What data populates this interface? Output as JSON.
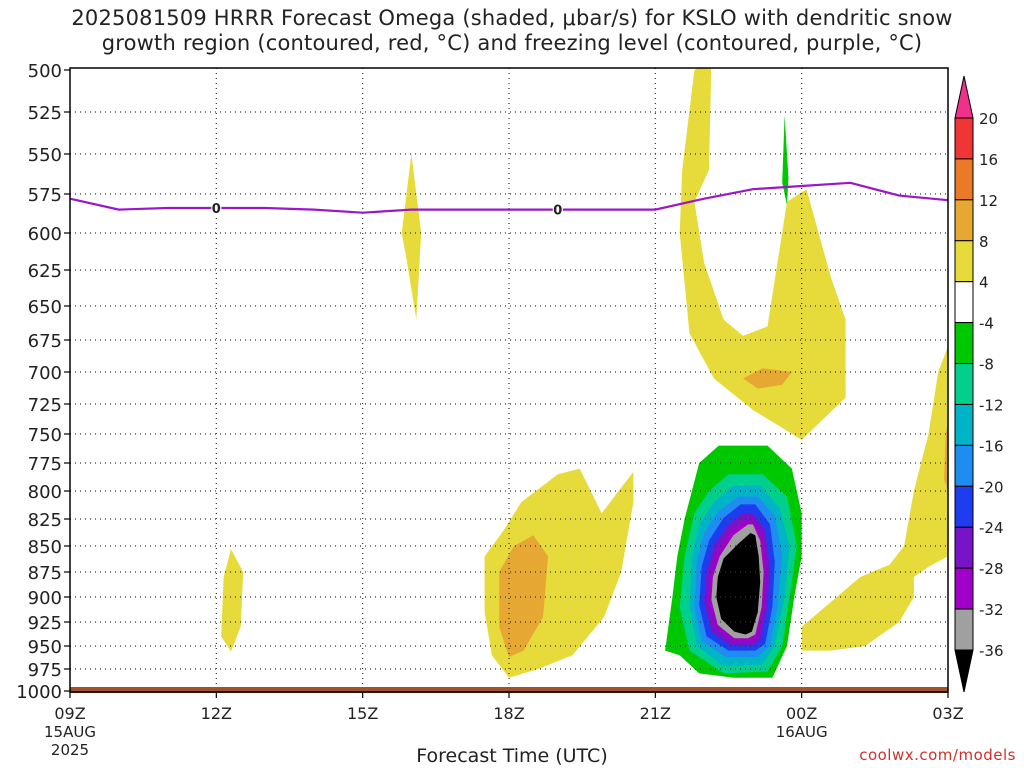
{
  "title": {
    "line1": "2025081509 HRRR Forecast Omega (shaded, μbar/s) for KSLO with dendritic snow",
    "line2": "growth region (contoured, red, °C) and freezing level (contoured, purple, °C)"
  },
  "credit": "coolwx.com/models",
  "chart_data": {
    "type": "contour",
    "xlabel": "Forecast Time (UTC)",
    "x_ticks": [
      {
        "label": "09Z",
        "date": "15AUG",
        "year": "2025",
        "hour": 0
      },
      {
        "label": "12Z",
        "hour": 3
      },
      {
        "label": "15Z",
        "hour": 6
      },
      {
        "label": "18Z",
        "hour": 9
      },
      {
        "label": "21Z",
        "hour": 12
      },
      {
        "label": "00Z",
        "date": "16AUG",
        "hour": 15
      },
      {
        "label": "03Z",
        "hour": 18
      }
    ],
    "y_ticks": [
      "500",
      "525",
      "550",
      "575",
      "600",
      "625",
      "650",
      "675",
      "700",
      "725",
      "750",
      "775",
      "800",
      "825",
      "850",
      "875",
      "900",
      "925",
      "950",
      "975",
      "1000"
    ],
    "ylim": [
      1000,
      500
    ],
    "grid": true,
    "colorbar": {
      "labels": [
        "20",
        "16",
        "12",
        "8",
        "4",
        "-4",
        "-8",
        "-12",
        "-16",
        "-20",
        "-24",
        "-28",
        "-32",
        "-36"
      ],
      "colors": [
        "#f0308a",
        "#f03535",
        "#ea7a28",
        "#e6a832",
        "#e6db3a",
        "#ffffff",
        "#00c800",
        "#00d08c",
        "#00b4c8",
        "#1e8cf0",
        "#1e3cf0",
        "#7814c8",
        "#a000c8",
        "#a0a0a0",
        "#000000"
      ]
    },
    "freezing_level": {
      "label": "0",
      "color": "#9b18c8",
      "points": [
        [
          0,
          578
        ],
        [
          1,
          585
        ],
        [
          2,
          584
        ],
        [
          3,
          584
        ],
        [
          4,
          584
        ],
        [
          5,
          585
        ],
        [
          6,
          587
        ],
        [
          7,
          585
        ],
        [
          8,
          585
        ],
        [
          9,
          585
        ],
        [
          10,
          585
        ],
        [
          11,
          585
        ],
        [
          12,
          585
        ],
        [
          13,
          578
        ],
        [
          14,
          572
        ],
        [
          15,
          570
        ],
        [
          16,
          568
        ],
        [
          17,
          576
        ],
        [
          18,
          579
        ]
      ]
    },
    "omega_regions": [
      {
        "value": 6,
        "color": "#e6db3a",
        "points": [
          [
            12.8,
            500
          ],
          [
            13.15,
            495
          ],
          [
            13.1,
            560
          ],
          [
            12.8,
            580
          ],
          [
            13.0,
            620
          ],
          [
            13.4,
            660
          ],
          [
            13.8,
            672
          ],
          [
            14.3,
            665
          ],
          [
            14.7,
            580
          ],
          [
            15.1,
            572
          ],
          [
            15.6,
            630
          ],
          [
            15.9,
            660
          ],
          [
            15.9,
            720
          ],
          [
            15.0,
            755
          ],
          [
            14.0,
            730
          ],
          [
            13.2,
            705
          ],
          [
            12.7,
            670
          ],
          [
            12.5,
            600
          ],
          [
            12.55,
            560
          ]
        ]
      },
      {
        "value": 10,
        "color": "#e6a832",
        "points": [
          [
            13.8,
            705
          ],
          [
            14.2,
            697
          ],
          [
            14.8,
            700
          ],
          [
            14.6,
            710
          ],
          [
            14.1,
            713
          ]
        ]
      },
      {
        "value": -6,
        "color": "#00c800",
        "points": [
          [
            14.65,
            527
          ],
          [
            14.73,
            565
          ],
          [
            14.7,
            582
          ],
          [
            14.6,
            568
          ]
        ]
      },
      {
        "value": 6,
        "color": "#e6db3a",
        "points": [
          [
            7.0,
            550
          ],
          [
            7.2,
            600
          ],
          [
            7.1,
            660
          ],
          [
            6.9,
            618
          ],
          [
            6.8,
            600
          ]
        ]
      },
      {
        "value": 6,
        "color": "#e6db3a",
        "points": [
          [
            3.3,
            853
          ],
          [
            3.55,
            875
          ],
          [
            3.5,
            930
          ],
          [
            3.3,
            956
          ],
          [
            3.1,
            940
          ],
          [
            3.15,
            880
          ]
        ]
      },
      {
        "value": 6,
        "color": "#e6db3a",
        "points": [
          [
            10.0,
            785
          ],
          [
            10.45,
            780
          ],
          [
            10.9,
            820
          ],
          [
            11.3,
            797
          ],
          [
            11.55,
            783
          ],
          [
            11.55,
            810
          ],
          [
            11.3,
            875
          ],
          [
            10.95,
            920
          ],
          [
            10.3,
            960
          ],
          [
            9.6,
            975
          ],
          [
            9.0,
            985
          ],
          [
            8.65,
            960
          ],
          [
            8.5,
            915
          ],
          [
            8.5,
            860
          ],
          [
            8.9,
            835
          ],
          [
            9.25,
            810
          ]
        ]
      },
      {
        "value": 10,
        "color": "#e6a832",
        "points": [
          [
            9.1,
            850
          ],
          [
            9.5,
            840
          ],
          [
            9.8,
            860
          ],
          [
            9.7,
            920
          ],
          [
            9.3,
            955
          ],
          [
            9.0,
            962
          ],
          [
            8.8,
            930
          ],
          [
            8.8,
            875
          ]
        ]
      },
      {
        "value": 6,
        "color": "#e6db3a",
        "points": [
          [
            15.0,
            930
          ],
          [
            15.6,
            905
          ],
          [
            16.2,
            880
          ],
          [
            16.8,
            868
          ],
          [
            17.1,
            850
          ],
          [
            17.3,
            800
          ],
          [
            17.6,
            750
          ],
          [
            17.8,
            700
          ],
          [
            18,
            680
          ],
          [
            18,
            860
          ],
          [
            17.6,
            870
          ],
          [
            17.3,
            880
          ],
          [
            17.3,
            900
          ],
          [
            17.0,
            925
          ],
          [
            16.3,
            950
          ],
          [
            15.6,
            955
          ],
          [
            15.0,
            955
          ]
        ]
      },
      {
        "value": 10,
        "color": "#e6a832",
        "points": [
          [
            17.95,
            750
          ],
          [
            18,
            740
          ],
          [
            18,
            800
          ],
          [
            17.92,
            790
          ]
        ]
      },
      {
        "value": -6,
        "color": "#00c800",
        "points": [
          [
            12.9,
            775
          ],
          [
            13.3,
            760
          ],
          [
            14.3,
            760
          ],
          [
            14.8,
            780
          ],
          [
            15.0,
            820
          ],
          [
            15.0,
            860
          ],
          [
            14.85,
            900
          ],
          [
            14.7,
            950
          ],
          [
            14.4,
            985
          ],
          [
            13.6,
            985
          ],
          [
            12.9,
            980
          ],
          [
            12.5,
            960
          ],
          [
            12.2,
            955
          ],
          [
            12.35,
            900
          ],
          [
            12.45,
            860
          ],
          [
            12.6,
            825
          ]
        ]
      },
      {
        "value": -10,
        "color": "#00d08c",
        "points": [
          [
            13.1,
            800
          ],
          [
            13.5,
            785
          ],
          [
            14.2,
            785
          ],
          [
            14.7,
            805
          ],
          [
            14.9,
            850
          ],
          [
            14.75,
            900
          ],
          [
            14.6,
            950
          ],
          [
            14.3,
            978
          ],
          [
            13.4,
            980
          ],
          [
            12.7,
            955
          ],
          [
            12.5,
            910
          ],
          [
            12.6,
            860
          ],
          [
            12.8,
            820
          ]
        ]
      },
      {
        "value": -14,
        "color": "#00b4c8",
        "points": [
          [
            13.2,
            810
          ],
          [
            13.6,
            795
          ],
          [
            14.15,
            795
          ],
          [
            14.55,
            815
          ],
          [
            14.75,
            850
          ],
          [
            14.65,
            900
          ],
          [
            14.45,
            950
          ],
          [
            14.2,
            970
          ],
          [
            13.4,
            972
          ],
          [
            12.85,
            950
          ],
          [
            12.7,
            910
          ],
          [
            12.75,
            860
          ],
          [
            12.9,
            830
          ]
        ]
      },
      {
        "value": -18,
        "color": "#1e8cf0",
        "points": [
          [
            13.3,
            818
          ],
          [
            13.7,
            805
          ],
          [
            14.1,
            805
          ],
          [
            14.45,
            822
          ],
          [
            14.6,
            860
          ],
          [
            14.5,
            910
          ],
          [
            14.35,
            950
          ],
          [
            14.1,
            962
          ],
          [
            13.45,
            962
          ],
          [
            12.95,
            945
          ],
          [
            12.8,
            910
          ],
          [
            12.85,
            865
          ],
          [
            13.0,
            838
          ]
        ]
      },
      {
        "value": -22,
        "color": "#1e3cf0",
        "points": [
          [
            13.4,
            824
          ],
          [
            13.75,
            812
          ],
          [
            14.05,
            812
          ],
          [
            14.35,
            830
          ],
          [
            14.45,
            865
          ],
          [
            14.4,
            910
          ],
          [
            14.25,
            948
          ],
          [
            14.05,
            955
          ],
          [
            13.5,
            955
          ],
          [
            13.05,
            940
          ],
          [
            12.9,
            908
          ],
          [
            12.95,
            870
          ],
          [
            13.1,
            845
          ]
        ]
      },
      {
        "value": -26,
        "color": "#7814c8",
        "points": [
          [
            13.5,
            830
          ],
          [
            13.8,
            820
          ],
          [
            14.0,
            820
          ],
          [
            14.25,
            835
          ],
          [
            14.35,
            870
          ],
          [
            14.3,
            910
          ],
          [
            14.15,
            945
          ],
          [
            14.0,
            950
          ],
          [
            13.55,
            950
          ],
          [
            13.15,
            935
          ],
          [
            13.0,
            905
          ],
          [
            13.05,
            875
          ],
          [
            13.2,
            850
          ]
        ]
      },
      {
        "value": -30,
        "color": "#a000c8",
        "points": [
          [
            13.55,
            835
          ],
          [
            13.85,
            826
          ],
          [
            14.0,
            826
          ],
          [
            14.2,
            840
          ],
          [
            14.28,
            872
          ],
          [
            14.23,
            910
          ],
          [
            14.1,
            942
          ],
          [
            13.95,
            946
          ],
          [
            13.6,
            946
          ],
          [
            13.22,
            930
          ],
          [
            13.08,
            903
          ],
          [
            13.12,
            878
          ],
          [
            13.27,
            855
          ]
        ]
      },
      {
        "value": -34,
        "color": "#a0a0a0",
        "points": [
          [
            13.6,
            840
          ],
          [
            13.9,
            830
          ],
          [
            14.0,
            830
          ],
          [
            14.15,
            845
          ],
          [
            14.22,
            875
          ],
          [
            14.18,
            910
          ],
          [
            14.05,
            938
          ],
          [
            13.9,
            942
          ],
          [
            13.62,
            942
          ],
          [
            13.28,
            928
          ],
          [
            13.15,
            903
          ],
          [
            13.18,
            880
          ],
          [
            13.32,
            860
          ]
        ]
      },
      {
        "value": -38,
        "color": "#000000",
        "points": [
          [
            13.7,
            848
          ],
          [
            13.95,
            838
          ],
          [
            14.05,
            840
          ],
          [
            14.12,
            860
          ],
          [
            14.15,
            885
          ],
          [
            14.1,
            915
          ],
          [
            13.98,
            935
          ],
          [
            13.85,
            938
          ],
          [
            13.62,
            935
          ],
          [
            13.35,
            922
          ],
          [
            13.25,
            900
          ],
          [
            13.28,
            880
          ],
          [
            13.4,
            862
          ]
        ]
      }
    ],
    "terrain": {
      "color": "#a0522d",
      "top_pressure": 1000
    }
  }
}
